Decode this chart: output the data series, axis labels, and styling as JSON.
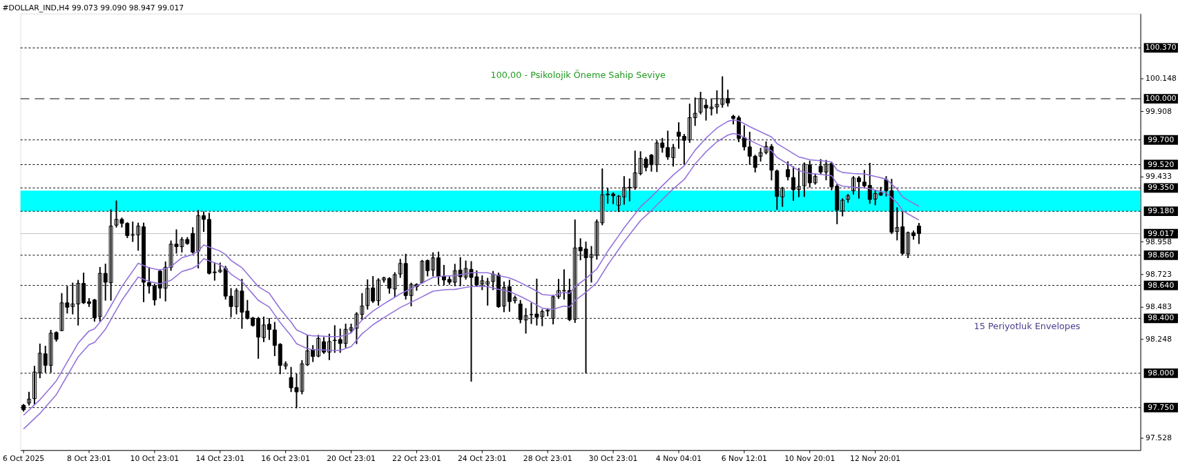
{
  "chart_data": {
    "type": "candlestick",
    "title": "#DOLLAR_IND,H4  99.073 99.090 98.947 99.017",
    "color": "#000000",
    "categories": [
      "6 Oct 2025",
      null,
      null,
      null,
      null,
      null,
      null,
      null,
      null,
      null,
      null,
      null,
      "8 Oct 23:01",
      null,
      null,
      null,
      null,
      null,
      null,
      null,
      null,
      null,
      null,
      null,
      "10 Oct 23:01",
      null,
      null,
      null,
      null,
      null,
      null,
      null,
      null,
      null,
      null,
      null,
      "14 Oct 23:01",
      null,
      null,
      null,
      null,
      null,
      null,
      null,
      null,
      null,
      null,
      null,
      "16 Oct 23:01",
      null,
      null,
      null,
      null,
      null,
      null,
      null,
      null,
      null,
      null,
      null,
      "20 Oct 23:01",
      null,
      null,
      null,
      null,
      null,
      null,
      null,
      null,
      null,
      null,
      null,
      "22 Oct 23:01",
      null,
      null,
      null,
      null,
      null,
      null,
      null,
      null,
      null,
      null,
      null,
      "24 Oct 23:01",
      null,
      null,
      null,
      null,
      null,
      null,
      null,
      null,
      null,
      null,
      null,
      "28 Oct 23:01",
      null,
      null,
      null,
      null,
      null,
      null,
      null,
      null,
      null,
      null,
      null,
      "30 Oct 23:01",
      null,
      null,
      null,
      null,
      null,
      null,
      null,
      null,
      null,
      null,
      null,
      "4 Nov 04:01",
      null,
      null,
      null,
      null,
      null,
      null,
      null,
      null,
      null,
      null,
      null,
      "6 Nov 12:01",
      null,
      null,
      null,
      null,
      null,
      null,
      null,
      null,
      null,
      null,
      null,
      "10 Nov 20:01",
      null,
      null,
      null,
      null,
      null,
      null,
      null,
      null,
      null,
      null,
      null,
      "12 Nov 20:01",
      null,
      null,
      null,
      null,
      null,
      null,
      null,
      null,
      null,
      null,
      null,
      null,
      null,
      null,
      null,
      null,
      null,
      null,
      null,
      null,
      null,
      null,
      null,
      null,
      null,
      null,
      null,
      null,
      null,
      null,
      null,
      null,
      null,
      null,
      null,
      null,
      null,
      null,
      null,
      null,
      null,
      null,
      null,
      null,
      null,
      null,
      null,
      null
    ],
    "ohlc": [
      [
        97.767,
        97.771,
        97.726,
        97.734
      ],
      [
        97.783,
        97.86,
        97.771,
        97.812
      ],
      [
        97.815,
        98.049,
        97.775,
        98.009
      ],
      [
        98.006,
        98.211,
        97.969,
        98.146
      ],
      [
        98.142,
        98.195,
        98.009,
        98.058
      ],
      [
        98.058,
        98.311,
        98.009,
        98.292
      ],
      [
        98.297,
        98.3,
        98.235,
        98.247
      ],
      [
        98.311,
        98.579,
        98.311,
        98.513
      ],
      [
        98.513,
        98.631,
        98.44,
        98.481
      ],
      [
        98.486,
        98.655,
        98.434,
        98.505
      ],
      [
        98.505,
        98.675,
        98.353,
        98.655
      ],
      [
        98.655,
        98.728,
        98.51,
        98.513
      ],
      [
        98.521,
        98.542,
        98.489,
        98.508
      ],
      [
        98.534,
        98.537,
        98.381,
        98.405
      ],
      [
        98.413,
        98.769,
        98.381,
        98.728
      ],
      [
        98.728,
        98.793,
        98.534,
        98.663
      ],
      [
        98.66,
        99.189,
        98.534,
        99.072
      ],
      [
        99.079,
        99.253,
        99.067,
        99.121
      ],
      [
        99.121,
        99.129,
        99.067,
        99.092
      ],
      [
        99.092,
        99.095,
        98.99,
        99.003
      ],
      [
        99.009,
        99.1,
        98.962,
        99.006
      ],
      [
        99.008,
        99.092,
        98.898,
        99.072
      ],
      [
        99.067,
        99.092,
        98.523,
        98.663
      ],
      [
        98.66,
        98.769,
        98.586,
        98.636
      ],
      [
        98.636,
        98.647,
        98.499,
        98.534
      ],
      [
        98.744,
        98.752,
        98.55,
        98.62
      ],
      [
        98.62,
        98.809,
        98.529,
        98.772
      ],
      [
        98.772,
        98.962,
        98.752,
        98.941
      ],
      [
        98.941,
        99.043,
        98.877,
        98.922
      ],
      [
        98.922,
        98.987,
        98.885,
        98.974
      ],
      [
        98.975,
        98.987,
        98.941,
        98.945
      ],
      [
        99.019,
        99.059,
        98.877,
        98.882
      ],
      [
        98.89,
        99.184,
        98.769,
        99.148
      ],
      [
        99.148,
        99.173,
        99.035,
        99.121
      ],
      [
        99.121,
        99.164,
        98.725,
        98.728
      ],
      [
        98.738,
        98.801,
        98.68,
        98.733
      ],
      [
        98.739,
        98.801,
        98.736,
        98.752
      ],
      [
        98.764,
        98.777,
        98.542,
        98.562
      ],
      [
        98.562,
        98.615,
        98.413,
        98.486
      ],
      [
        98.486,
        98.615,
        98.434,
        98.602
      ],
      [
        98.599,
        98.683,
        98.329,
        98.445
      ],
      [
        98.453,
        98.529,
        98.397,
        98.4
      ],
      [
        98.402,
        98.406,
        98.345,
        98.348
      ],
      [
        98.4,
        98.405,
        98.111,
        98.263
      ],
      [
        98.26,
        98.408,
        98.232,
        98.352
      ],
      [
        98.357,
        98.397,
        98.248,
        98.319
      ],
      [
        98.316,
        98.369,
        98.13,
        98.203
      ],
      [
        98.211,
        98.214,
        97.998,
        98.058
      ],
      [
        98.053,
        98.082,
        98.033,
        98.069
      ],
      [
        97.969,
        98.041,
        97.868,
        97.894
      ],
      [
        97.896,
        97.993,
        97.75,
        97.864
      ],
      [
        97.868,
        98.09,
        97.852,
        98.069
      ],
      [
        98.062,
        98.272,
        98.058,
        98.163
      ],
      [
        98.171,
        98.2,
        98.087,
        98.122
      ],
      [
        98.125,
        98.275,
        98.122,
        98.254
      ],
      [
        98.23,
        98.259,
        98.146,
        98.154
      ],
      [
        98.154,
        98.283,
        98.101,
        98.231
      ],
      [
        98.238,
        98.345,
        98.154,
        98.241
      ],
      [
        98.246,
        98.32,
        98.154,
        98.217
      ],
      [
        98.217,
        98.356,
        98.191,
        98.32
      ],
      [
        98.315,
        98.356,
        98.299,
        98.332
      ],
      [
        98.328,
        98.44,
        98.218,
        98.432
      ],
      [
        98.429,
        98.579,
        98.393,
        98.49
      ],
      [
        98.493,
        98.679,
        98.469,
        98.618
      ],
      [
        98.622,
        98.703,
        98.517,
        98.526
      ],
      [
        98.529,
        98.687,
        98.498,
        98.679
      ],
      [
        98.679,
        98.698,
        98.666,
        98.695
      ],
      [
        98.69,
        98.695,
        98.585,
        98.619
      ],
      [
        98.614,
        98.731,
        98.558,
        98.719
      ],
      [
        98.723,
        98.828,
        98.7,
        98.8
      ],
      [
        98.8,
        98.865,
        98.542,
        98.566
      ],
      [
        98.566,
        98.655,
        98.493,
        98.647
      ],
      [
        98.647,
        98.65,
        98.606,
        98.631
      ],
      [
        98.66,
        98.821,
        98.658,
        98.816
      ],
      [
        98.821,
        98.824,
        98.711,
        98.747
      ],
      [
        98.752,
        98.876,
        98.711,
        98.841
      ],
      [
        98.841,
        98.881,
        98.65,
        98.707
      ],
      [
        98.708,
        98.784,
        98.647,
        98.679
      ],
      [
        98.684,
        98.7,
        98.65,
        98.663
      ],
      [
        98.663,
        98.792,
        98.639,
        98.747
      ],
      [
        98.752,
        98.841,
        98.639,
        98.703
      ],
      [
        98.7,
        98.816,
        98.687,
        98.763
      ],
      [
        98.757,
        98.812,
        97.944,
        98.698
      ],
      [
        98.703,
        98.744,
        98.634,
        98.643
      ],
      [
        98.65,
        98.708,
        98.611,
        98.674
      ],
      [
        98.65,
        98.69,
        98.498,
        98.668
      ],
      [
        98.668,
        98.74,
        98.611,
        98.723
      ],
      [
        98.716,
        98.728,
        98.482,
        98.485
      ],
      [
        98.49,
        98.663,
        98.45,
        98.626
      ],
      [
        98.631,
        98.676,
        98.453,
        98.522
      ],
      [
        98.529,
        98.561,
        98.514,
        98.55
      ],
      [
        98.505,
        98.529,
        98.369,
        98.391
      ],
      [
        98.388,
        98.469,
        98.294,
        98.42
      ],
      [
        98.427,
        98.509,
        98.364,
        98.429
      ],
      [
        98.432,
        98.684,
        98.353,
        98.408
      ],
      [
        98.412,
        98.461,
        98.348,
        98.45
      ],
      [
        98.453,
        98.469,
        98.42,
        98.461
      ],
      [
        98.399,
        98.566,
        98.361,
        98.558
      ],
      [
        98.558,
        98.682,
        98.547,
        98.603
      ],
      [
        98.6,
        98.752,
        98.542,
        98.603
      ],
      [
        98.603,
        98.684,
        98.385,
        98.391
      ],
      [
        98.393,
        99.115,
        98.372,
        98.913
      ],
      [
        98.918,
        98.978,
        98.828,
        98.892
      ],
      [
        98.905,
        98.954,
        98.004,
        98.841
      ],
      [
        98.844,
        98.922,
        98.666,
        98.865
      ],
      [
        98.86,
        99.116,
        98.833,
        99.103
      ],
      [
        99.096,
        99.487,
        99.083,
        99.301
      ],
      [
        99.305,
        99.345,
        99.24,
        99.3
      ],
      [
        99.306,
        99.313,
        99.237,
        99.293
      ],
      [
        99.224,
        99.293,
        99.18,
        99.29
      ],
      [
        99.285,
        99.431,
        99.233,
        99.353
      ],
      [
        99.351,
        99.414,
        99.258,
        99.355
      ],
      [
        99.353,
        99.617,
        99.342,
        99.46
      ],
      [
        99.455,
        99.612,
        99.447,
        99.565
      ],
      [
        99.56,
        99.571,
        99.476,
        99.499
      ],
      [
        99.589,
        99.592,
        99.474,
        99.519
      ],
      [
        99.519,
        99.692,
        99.471,
        99.678
      ],
      [
        99.678,
        99.709,
        99.612,
        99.644
      ],
      [
        99.644,
        99.762,
        99.56,
        99.576
      ],
      [
        99.571,
        99.665,
        99.511,
        99.644
      ],
      [
        99.757,
        99.823,
        99.641,
        99.726
      ],
      [
        99.726,
        99.738,
        99.524,
        99.697
      ],
      [
        99.7,
        99.959,
        99.684,
        99.862
      ],
      [
        99.862,
        100.004,
        99.807,
        99.894
      ],
      [
        99.902,
        100.045,
        99.891,
        100.001
      ],
      [
        99.953,
        99.993,
        99.846,
        99.932
      ],
      [
        99.927,
        99.993,
        99.883,
        99.94
      ],
      [
        99.94,
        100.056,
        99.896,
        99.959
      ],
      [
        99.959,
        100.158,
        99.94,
        100.001
      ],
      [
        100.001,
        100.061,
        99.948,
        99.969
      ],
      [
        99.872,
        99.878,
        99.818,
        99.856
      ],
      [
        99.862,
        99.872,
        99.689,
        99.71
      ],
      [
        99.717,
        99.802,
        99.628,
        99.649
      ],
      [
        99.649,
        99.754,
        99.523,
        99.581
      ],
      [
        99.581,
        99.587,
        99.468,
        99.499
      ],
      [
        99.581,
        99.637,
        99.547,
        99.608
      ],
      [
        99.608,
        99.684,
        99.6,
        99.652
      ],
      [
        99.652,
        99.665,
        99.41,
        99.479
      ],
      [
        99.474,
        99.479,
        99.196,
        99.288
      ],
      [
        99.285,
        99.353,
        99.217,
        99.35
      ],
      [
        99.484,
        99.539,
        99.41,
        99.431
      ],
      [
        99.426,
        99.503,
        99.261,
        99.337
      ],
      [
        99.338,
        99.49,
        99.288,
        99.361
      ],
      [
        99.366,
        99.531,
        99.29,
        99.523
      ],
      [
        99.516,
        99.544,
        99.358,
        99.387
      ],
      [
        99.387,
        99.45,
        99.379,
        99.434
      ],
      [
        99.508,
        99.555,
        99.455,
        99.466
      ],
      [
        99.466,
        99.549,
        99.411,
        99.523
      ],
      [
        99.528,
        99.536,
        99.338,
        99.358
      ],
      [
        99.363,
        99.374,
        99.091,
        99.188
      ],
      [
        99.183,
        99.269,
        99.148,
        99.261
      ],
      [
        99.266,
        99.301,
        99.248,
        99.293
      ],
      [
        99.329,
        99.431,
        99.306,
        99.423
      ],
      [
        99.423,
        99.431,
        99.277,
        99.395
      ],
      [
        99.393,
        99.476,
        99.35,
        99.366
      ],
      [
        99.369,
        99.528,
        99.24,
        99.266
      ],
      [
        99.269,
        99.326,
        99.229,
        99.309
      ],
      [
        99.314,
        99.353,
        99.297,
        99.298
      ],
      [
        99.41,
        99.431,
        99.293,
        99.33
      ],
      [
        99.33,
        99.411,
        99.019,
        99.027
      ],
      [
        99.032,
        99.204,
        98.973,
        99.062
      ],
      [
        99.067,
        99.172,
        98.865,
        98.873
      ],
      [
        98.87,
        99.027,
        98.844,
        99.024
      ],
      [
        99.024,
        99.035,
        98.978,
        99.002
      ],
      [
        99.073,
        99.09,
        98.947,
        99.017
      ],
      null,
      null,
      null,
      null,
      null,
      null,
      null,
      null,
      null,
      null,
      null,
      null,
      null,
      null,
      null,
      null,
      null,
      null,
      null,
      null,
      null,
      null,
      null,
      null,
      null,
      null,
      null,
      null,
      null,
      null,
      null,
      null,
      null,
      null,
      null,
      null,
      null,
      null,
      null,
      null
    ],
    "series": [
      {
        "type": "line",
        "color": "#9370db",
        "values": [
          97.694,
          97.732,
          97.77,
          97.807,
          97.853,
          97.898,
          97.944,
          98.013,
          98.082,
          98.15,
          98.219,
          98.264,
          98.308,
          98.324,
          98.372,
          98.421,
          98.491,
          98.561,
          98.631,
          98.688,
          98.744,
          98.801,
          98.785,
          98.769,
          98.76,
          98.752,
          98.764,
          98.777,
          98.809,
          98.841,
          98.853,
          98.865,
          98.89,
          98.935,
          98.919,
          98.905,
          98.89,
          98.865,
          98.822,
          98.795,
          98.769,
          98.723,
          98.677,
          98.631,
          98.607,
          98.583,
          98.526,
          98.47,
          98.421,
          98.373,
          98.316,
          98.297,
          98.279,
          98.272,
          98.272,
          98.27,
          98.268,
          98.267,
          98.267,
          98.28,
          98.294,
          98.341,
          98.388,
          98.42,
          98.453,
          98.479,
          98.505,
          98.53,
          98.554,
          98.579,
          98.598,
          98.618,
          98.637,
          98.657,
          98.678,
          98.698,
          98.703,
          98.708,
          98.71,
          98.711,
          98.718,
          98.725,
          98.732,
          98.732,
          98.732,
          98.732,
          98.722,
          98.711,
          98.703,
          98.695,
          98.678,
          98.66,
          98.64,
          98.619,
          98.598,
          98.574,
          98.57,
          98.566,
          98.578,
          98.59,
          98.582,
          98.631,
          98.66,
          98.69,
          98.725,
          98.76,
          98.825,
          98.889,
          98.946,
          99.002,
          99.059,
          99.11,
          99.161,
          99.212,
          99.249,
          99.285,
          99.326,
          99.366,
          99.405,
          99.444,
          99.478,
          99.511,
          99.568,
          99.625,
          99.669,
          99.713,
          99.75,
          99.786,
          99.811,
          99.835,
          99.846,
          99.839,
          99.818,
          99.797,
          99.778,
          99.759,
          99.74,
          99.721,
          99.673,
          99.649,
          99.625,
          99.6,
          99.576,
          99.566,
          99.555,
          99.552,
          99.549,
          99.544,
          99.539,
          99.48,
          99.463,
          99.459,
          99.455,
          99.453,
          99.452,
          99.443,
          99.434,
          99.424,
          99.414,
          99.378,
          99.342,
          99.285,
          99.261,
          99.238,
          99.216,
          null,
          null,
          null,
          null,
          null,
          null,
          null,
          null,
          null,
          null,
          null,
          null,
          null,
          null,
          null,
          null,
          null,
          null,
          null,
          null,
          null,
          null,
          null,
          null,
          null,
          null,
          null,
          null,
          null,
          null,
          null,
          null,
          null,
          null,
          null,
          null,
          null,
          null,
          null,
          null
        ]
      },
      {
        "type": "line",
        "color": "#9370db",
        "values": [
          97.594,
          97.632,
          97.67,
          97.707,
          97.753,
          97.798,
          97.844,
          97.913,
          97.982,
          98.05,
          98.119,
          98.164,
          98.208,
          98.224,
          98.272,
          98.321,
          98.391,
          98.461,
          98.531,
          98.588,
          98.644,
          98.701,
          98.685,
          98.669,
          98.66,
          98.652,
          98.664,
          98.677,
          98.709,
          98.741,
          98.753,
          98.765,
          98.79,
          98.835,
          98.819,
          98.805,
          98.79,
          98.765,
          98.722,
          98.695,
          98.669,
          98.623,
          98.577,
          98.531,
          98.507,
          98.483,
          98.426,
          98.37,
          98.321,
          98.273,
          98.216,
          98.197,
          98.179,
          98.172,
          98.172,
          98.17,
          98.168,
          98.167,
          98.167,
          98.18,
          98.194,
          98.241,
          98.288,
          98.32,
          98.353,
          98.379,
          98.405,
          98.43,
          98.454,
          98.479,
          98.498,
          98.518,
          98.537,
          98.557,
          98.578,
          98.598,
          98.603,
          98.608,
          98.61,
          98.611,
          98.618,
          98.625,
          98.632,
          98.632,
          98.632,
          98.632,
          98.622,
          98.611,
          98.603,
          98.595,
          98.578,
          98.56,
          98.54,
          98.519,
          98.498,
          98.474,
          98.47,
          98.466,
          98.478,
          98.49,
          98.482,
          98.531,
          98.56,
          98.59,
          98.625,
          98.66,
          98.725,
          98.789,
          98.846,
          98.902,
          98.959,
          99.01,
          99.061,
          99.112,
          99.149,
          99.185,
          99.226,
          99.266,
          99.305,
          99.344,
          99.378,
          99.411,
          99.468,
          99.525,
          99.569,
          99.613,
          99.65,
          99.686,
          99.711,
          99.735,
          99.746,
          99.739,
          99.718,
          99.697,
          99.678,
          99.659,
          99.64,
          99.621,
          99.573,
          99.549,
          99.525,
          99.5,
          99.476,
          99.466,
          99.455,
          99.452,
          99.449,
          99.444,
          99.439,
          99.38,
          99.363,
          99.359,
          99.355,
          99.353,
          99.352,
          99.343,
          99.334,
          99.324,
          99.314,
          99.278,
          99.242,
          99.185,
          99.161,
          99.138,
          99.116,
          null,
          null,
          null,
          null,
          null,
          null,
          null,
          null,
          null,
          null,
          null,
          null,
          null,
          null,
          null,
          null,
          null,
          null,
          null,
          null,
          null,
          null,
          null,
          null,
          null,
          null,
          null,
          null,
          null,
          null,
          null,
          null,
          null,
          null,
          null,
          null,
          null,
          null,
          null,
          null
        ]
      }
    ],
    "ylim": [
      97.44,
      100.62
    ],
    "yticks": [
      97.528,
      98.248,
      98.483,
      98.723,
      98.958,
      99.433,
      99.908,
      100.148
    ],
    "ref_lines": [
      {
        "axis": "y",
        "value": 100.37,
        "label": "100.370",
        "line_style": "dotted"
      },
      {
        "axis": "y",
        "value": 100.0,
        "label": "100.000",
        "line_style": "dashed"
      },
      {
        "axis": "y",
        "value": 99.7,
        "label": "99.700",
        "line_style": "dotted"
      },
      {
        "axis": "y",
        "value": 99.52,
        "label": "99.520",
        "line_style": "dotted"
      },
      {
        "axis": "y",
        "value": 99.35,
        "label": "99.350",
        "line_style": "dotted"
      },
      {
        "axis": "y",
        "value": 99.18,
        "label": "99.180",
        "line_style": "dotted"
      },
      {
        "axis": "y",
        "value": 99.017,
        "label": "99.017",
        "line_style": "solid",
        "color": "#c0c0c0"
      },
      {
        "axis": "y",
        "value": 98.86,
        "label": "98.860",
        "line_style": "dotted"
      },
      {
        "axis": "y",
        "value": 98.64,
        "label": "98.640",
        "line_style": "dotted"
      },
      {
        "axis": "y",
        "value": 98.4,
        "label": "98.400",
        "line_style": "dotted"
      },
      {
        "axis": "y",
        "value": 98.0,
        "label": "98.000",
        "line_style": "dotted"
      },
      {
        "axis": "y",
        "value": 97.75,
        "label": "97.750",
        "line_style": "dotted"
      }
    ],
    "bands": [
      {
        "axis": "y",
        "from": 99.18,
        "to": 99.33,
        "color": "#00ffff"
      }
    ],
    "annotations": [
      "100,00 -  Psikolojik Öneme Sahip Seviye",
      "15 Periyotluk Envelopes"
    ]
  }
}
